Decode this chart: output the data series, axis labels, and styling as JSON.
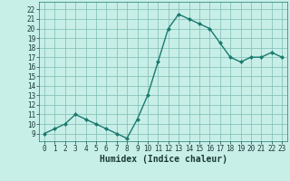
{
  "x": [
    0,
    1,
    2,
    3,
    4,
    5,
    6,
    7,
    8,
    9,
    10,
    11,
    12,
    13,
    14,
    15,
    16,
    17,
    18,
    19,
    20,
    21,
    22,
    23
  ],
  "y": [
    9,
    9.5,
    10,
    11,
    10.5,
    10,
    9.5,
    9,
    8.5,
    10.5,
    13,
    16.5,
    20,
    21.5,
    21,
    20.5,
    20,
    18.5,
    17,
    16.5,
    17,
    17,
    17.5,
    17
  ],
  "line_color": "#1a7a6e",
  "marker_color": "#1a7a6e",
  "bg_color": "#c8eee8",
  "grid_color": "#7abcb4",
  "xlabel": "Humidex (Indice chaleur)",
  "xlim": [
    -0.5,
    23.5
  ],
  "ylim": [
    8.2,
    22.8
  ],
  "yticks": [
    9,
    10,
    11,
    12,
    13,
    14,
    15,
    16,
    17,
    18,
    19,
    20,
    21,
    22
  ],
  "xticks": [
    0,
    1,
    2,
    3,
    4,
    5,
    6,
    7,
    8,
    9,
    10,
    11,
    12,
    13,
    14,
    15,
    16,
    17,
    18,
    19,
    20,
    21,
    22,
    23
  ],
  "tick_fontsize": 5.5,
  "label_fontsize": 7
}
